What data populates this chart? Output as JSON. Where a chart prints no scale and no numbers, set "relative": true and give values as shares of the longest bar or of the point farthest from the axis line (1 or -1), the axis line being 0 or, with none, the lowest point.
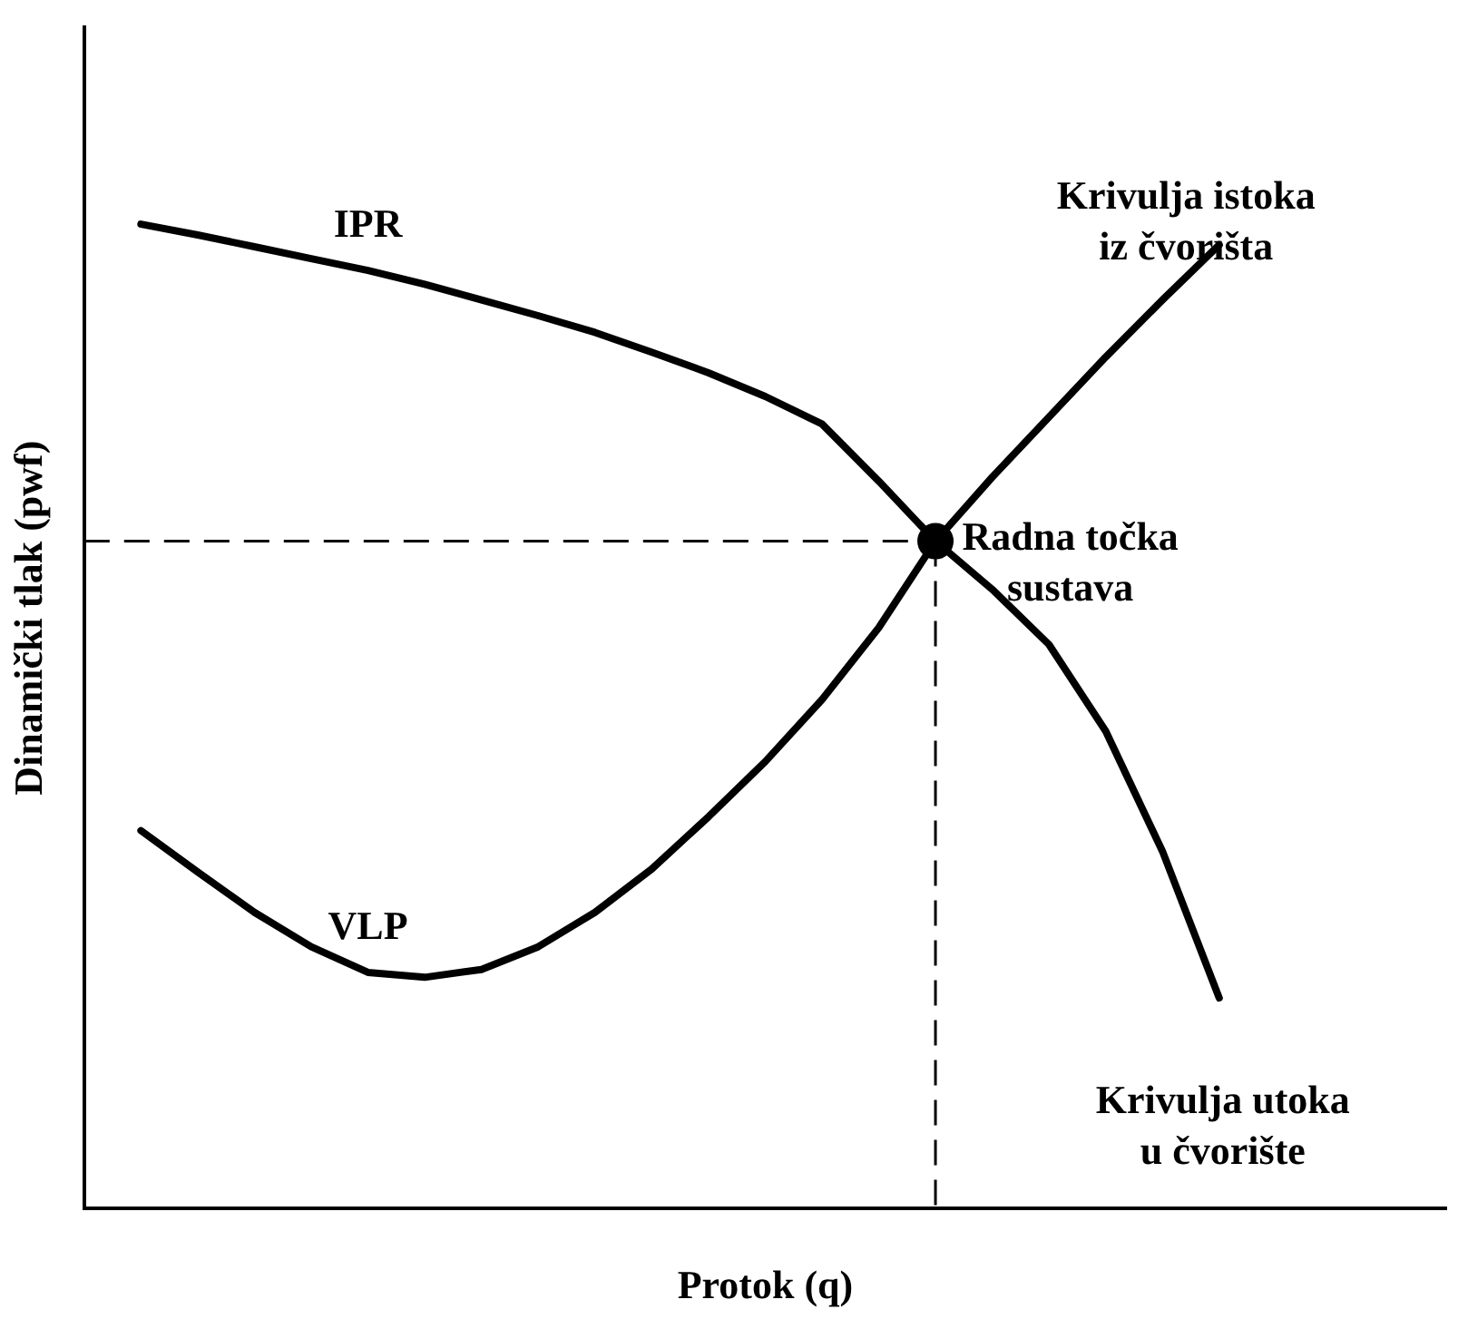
{
  "chart_data": {
    "type": "line",
    "relative": true,
    "xlabel": "Protok (q)",
    "ylabel": "Dinamički tlak (pwf)",
    "grid": false,
    "legend": false,
    "marker": "none",
    "line_style": "solid",
    "categories": [
      null,
      null,
      null,
      null,
      null,
      null,
      null,
      null,
      null,
      null,
      null,
      null,
      null,
      null,
      null,
      null,
      null,
      null,
      null,
      null,
      null,
      null,
      null,
      null,
      null
    ],
    "series": [
      {
        "name": "IPR",
        "color": "#000000",
        "values": [
          null,
          1.0,
          0.989,
          0.977,
          0.965,
          0.953,
          0.939,
          0.923,
          0.907,
          0.89,
          0.87,
          0.849,
          0.825,
          0.797,
          0.739,
          0.678,
          0.629,
          0.573,
          0.485,
          0.363,
          0.214,
          null,
          null,
          null,
          null
        ]
      },
      {
        "name": "VLP",
        "color": "#000000",
        "values": [
          null,
          0.384,
          0.342,
          0.301,
          0.266,
          0.24,
          0.235,
          0.243,
          0.266,
          0.301,
          0.345,
          0.398,
          0.454,
          0.517,
          0.59,
          0.678,
          0.743,
          0.804,
          0.865,
          0.923,
          0.979,
          null,
          null,
          null,
          null
        ]
      },
      {
        "marker": "circle",
        "color": "#000000",
        "values": [
          null,
          null,
          null,
          null,
          null,
          null,
          null,
          null,
          null,
          null,
          null,
          null,
          null,
          null,
          null,
          0.678,
          null,
          null,
          null,
          null,
          null,
          null,
          null,
          null,
          null
        ]
      }
    ],
    "ref_lines": [
      {
        "axis": "y",
        "value": 0.678,
        "line_style": "dashed",
        "color": "#000000"
      }
    ],
    "annotations": [
      "Krivulja istoka\niz čvorišta",
      "Radna točka\nsustava",
      "Krivulja utoka\nu čvorište"
    ]
  }
}
